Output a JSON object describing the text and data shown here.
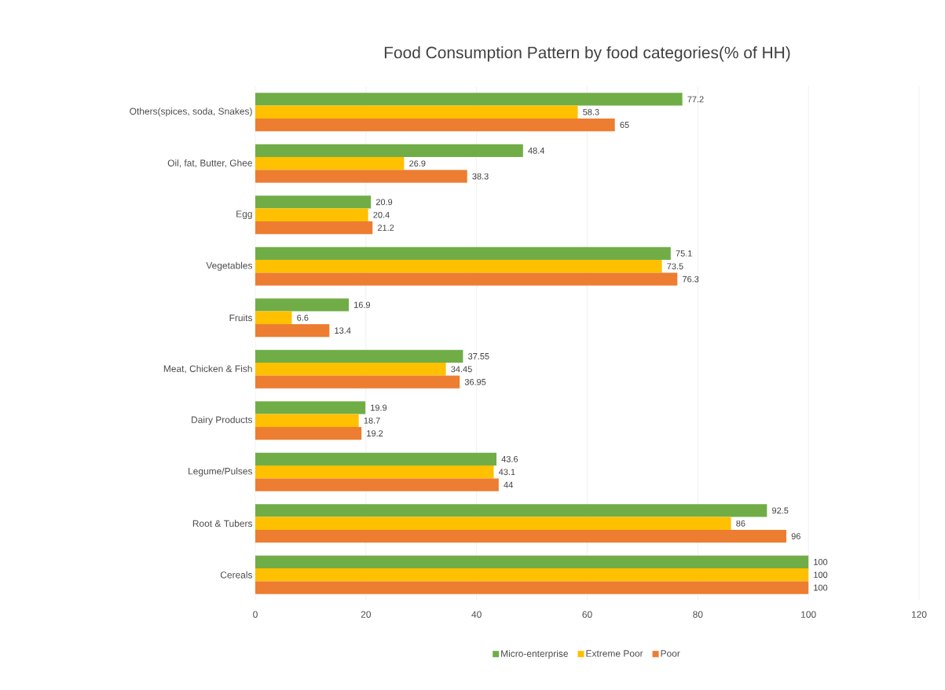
{
  "chart_data": {
    "type": "bar",
    "orientation": "horizontal",
    "title": "Food Consumption Pattern by food categories(% of HH)",
    "categories": [
      "Others(spices, soda, Snakes)",
      "Oil, fat, Butter, Ghee",
      "Egg",
      "Vegetables",
      "Fruits",
      "Meat, Chicken & Fish",
      "Dairy Products",
      "Legume/Pulses",
      "Root & Tubers",
      "Cereals"
    ],
    "series": [
      {
        "name": "Micro-enterprise",
        "color": "#70ad47",
        "values": [
          77.2,
          48.4,
          20.9,
          75.1,
          16.9,
          37.55,
          19.9,
          43.6,
          92.5,
          100
        ]
      },
      {
        "name": "Extreme Poor",
        "color": "#ffc000",
        "values": [
          58.3,
          26.9,
          20.4,
          73.5,
          6.6,
          34.45,
          18.7,
          43.1,
          86,
          100
        ]
      },
      {
        "name": "Poor",
        "color": "#ed7d31",
        "values": [
          65,
          38.3,
          21.2,
          76.3,
          13.4,
          36.95,
          19.2,
          44,
          96,
          100
        ]
      }
    ],
    "xlim": [
      0,
      120
    ],
    "xticks": [
      0,
      20,
      40,
      60,
      80,
      100,
      120
    ],
    "grid": "x",
    "legend": "bottom",
    "data_labels": true
  }
}
